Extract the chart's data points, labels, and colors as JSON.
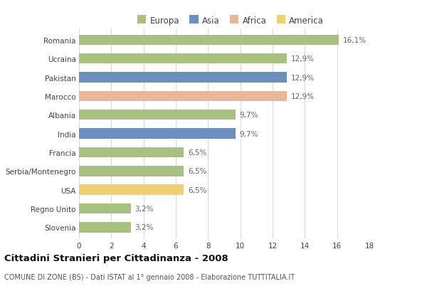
{
  "countries": [
    "Romania",
    "Ucraina",
    "Pakistan",
    "Marocco",
    "Albania",
    "India",
    "Francia",
    "Serbia/Montenegro",
    "USA",
    "Regno Unito",
    "Slovenia"
  ],
  "values": [
    16.1,
    12.9,
    12.9,
    12.9,
    9.7,
    9.7,
    6.5,
    6.5,
    6.5,
    3.2,
    3.2
  ],
  "labels": [
    "16,1%",
    "12,9%",
    "12,9%",
    "12,9%",
    "9,7%",
    "9,7%",
    "6,5%",
    "6,5%",
    "6,5%",
    "3,2%",
    "3,2%"
  ],
  "continents": [
    "Europa",
    "Europa",
    "Asia",
    "Africa",
    "Europa",
    "Asia",
    "Europa",
    "Europa",
    "America",
    "Europa",
    "Europa"
  ],
  "colors": {
    "Europa": "#a8c080",
    "Asia": "#6b8fbf",
    "Africa": "#e8b898",
    "America": "#f0d070"
  },
  "xlim": [
    0,
    18
  ],
  "xticks": [
    0,
    2,
    4,
    6,
    8,
    10,
    12,
    14,
    16,
    18
  ],
  "title": "Cittadini Stranieri per Cittadinanza - 2008",
  "subtitle": "COMUNE DI ZONE (BS) - Dati ISTAT al 1° gennaio 2008 - Elaborazione TUTTITALIA.IT",
  "background_color": "#ffffff",
  "grid_color": "#d0d0d0",
  "bar_height": 0.55,
  "label_fontsize": 7.5,
  "tick_fontsize": 7.5,
  "legend_labels": [
    "Europa",
    "Asia",
    "Africa",
    "America"
  ]
}
